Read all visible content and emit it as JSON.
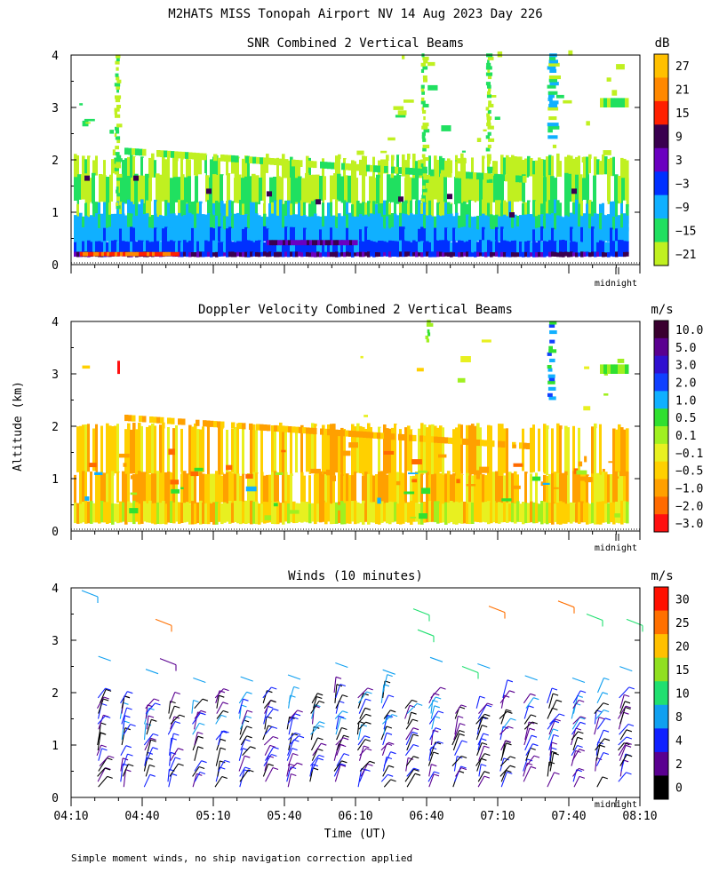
{
  "figure": {
    "title": "M2HATS MISS Tonopah Airport NV  14 Aug 2023 Day 226",
    "ylabel": "Altitude (km)",
    "xlabel": "Time (UT)",
    "footnote": "Simple moment winds, no ship navigation correction applied",
    "midnight_label": "midnight"
  },
  "chart_data": [
    {
      "type": "heatmap",
      "title": "SNR Combined 2 Vertical Beams",
      "ylim": [
        0,
        4
      ],
      "yticks": [
        "0",
        "1",
        "2",
        "3",
        "4"
      ],
      "xlim_minutes_utc": [
        250,
        490
      ],
      "colorbar": {
        "unit": "dB",
        "labels": [
          "27",
          "21",
          "15",
          "9",
          "3",
          "−3",
          "−9",
          "−15",
          "−21"
        ],
        "colors": [
          "#ffc000",
          "#ff8800",
          "#ff2000",
          "#3a0050",
          "#6a00c0",
          "#0030ff",
          "#10b0ff",
          "#20e060",
          "#c0f020"
        ]
      },
      "layers": [
        {
          "alt_range": [
            0.15,
            0.3
          ],
          "class": "red/magenta"
        },
        {
          "alt_range": [
            0.3,
            0.6
          ],
          "class": "blue"
        },
        {
          "alt_range": [
            0.6,
            1.0
          ],
          "class": "cyan"
        },
        {
          "alt_range": [
            1.0,
            2.0
          ],
          "class": "green/yellow-green"
        }
      ]
    },
    {
      "type": "heatmap",
      "title": "Doppler Velocity Combined 2 Vertical Beams",
      "ylim": [
        0,
        4
      ],
      "yticks": [
        "0",
        "1",
        "2",
        "3",
        "4"
      ],
      "xlim_minutes_utc": [
        250,
        490
      ],
      "colorbar": {
        "unit": "m/s",
        "labels": [
          "10.0",
          "5.0",
          "3.0",
          "2.0",
          "1.0",
          "0.5",
          "0.1",
          "−0.1",
          "−0.5",
          "−1.0",
          "−2.0",
          "−3.0"
        ],
        "colors": [
          "#3a0030",
          "#5a0090",
          "#3010d0",
          "#1040ff",
          "#10b0ff",
          "#30e030",
          "#a0f020",
          "#e8f020",
          "#ffd000",
          "#ffa000",
          "#ff6a00",
          "#ff1010"
        ]
      },
      "dominant_value_range_ms": [
        -1.0,
        -0.1
      ]
    },
    {
      "type": "barbs",
      "title": "Winds (10 minutes)",
      "ylim": [
        0,
        4
      ],
      "yticks": [
        "0",
        "1",
        "2",
        "3",
        "4"
      ],
      "xticks": [
        "04:10",
        "04:40",
        "05:10",
        "05:40",
        "06:10",
        "06:40",
        "07:10",
        "07:40",
        "08:10"
      ],
      "xtick_minutes_utc": [
        250,
        280,
        310,
        340,
        370,
        400,
        430,
        460,
        490
      ],
      "barb_times_minutes_utc": [
        260,
        270,
        280,
        290,
        300,
        310,
        320,
        330,
        340,
        350,
        360,
        370,
        380,
        390,
        400,
        410,
        420,
        430,
        440,
        450,
        460,
        470,
        480
      ],
      "colorbar": {
        "unit": "m/s",
        "labels": [
          "30",
          "25",
          "20",
          "15",
          "10",
          "8",
          "4",
          "2",
          "0"
        ],
        "colors": [
          "#ff1000",
          "#ff7000",
          "#ffc000",
          "#90e020",
          "#20e070",
          "#10a0f0",
          "#1020ff",
          "#5a0090",
          "#000000"
        ]
      }
    }
  ]
}
